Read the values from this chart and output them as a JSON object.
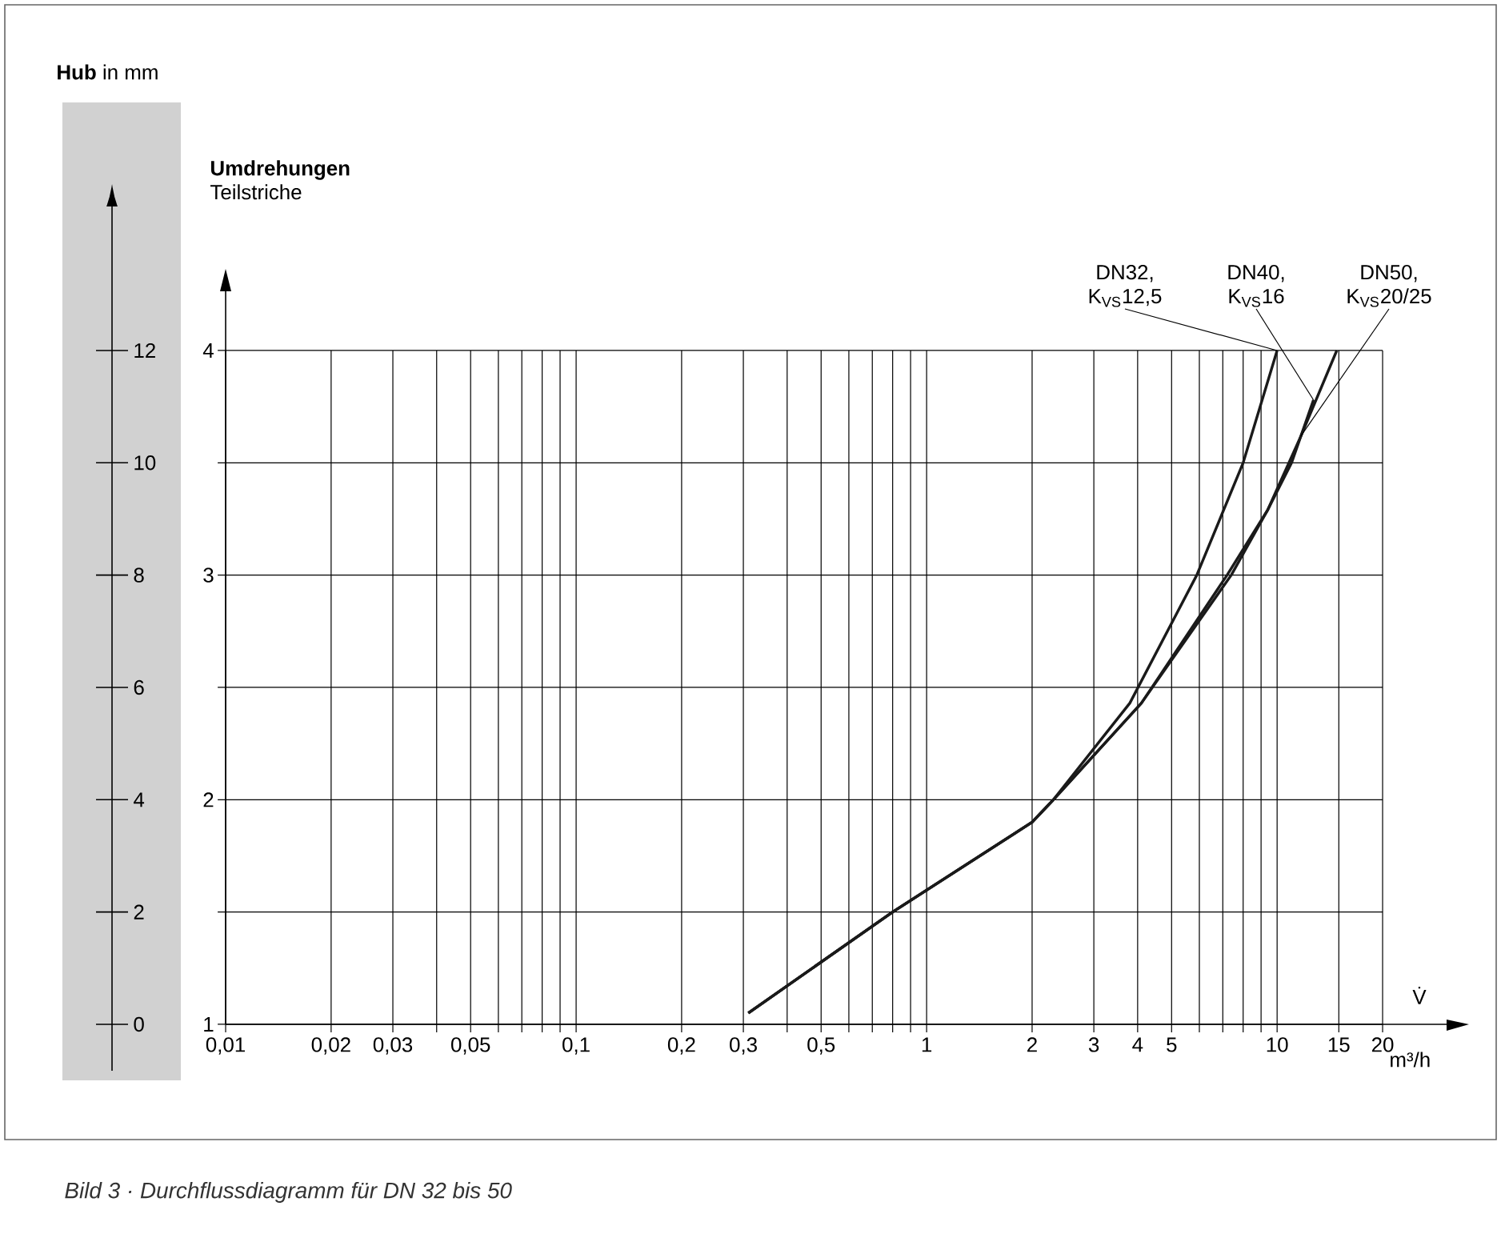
{
  "chart_data": {
    "type": "line",
    "xlabel": "V̇",
    "annotations": [
      "**Hub** in mm",
      "**Umdrehungen** Teilstriche",
      "m³/h",
      "Bild 3 · Durchflussdiagramm für DN 32 bis 50"
    ],
    "log": "x",
    "grid": true,
    "marker": "none",
    "line_style": "solid",
    "xlim": [
      0.01,
      20
    ],
    "xticks": [
      {
        "value": 0.01,
        "label": "0,01"
      },
      {
        "value": 0.02,
        "label": "0,02"
      },
      {
        "value": 0.03,
        "label": "0,03"
      },
      {
        "value": 0.04,
        "label": null
      },
      {
        "value": 0.05,
        "label": "0,05"
      },
      {
        "value": 0.06,
        "label": null
      },
      {
        "value": 0.07,
        "label": null
      },
      {
        "value": 0.08,
        "label": null
      },
      {
        "value": 0.09,
        "label": null
      },
      {
        "value": 0.1,
        "label": "0,1"
      },
      {
        "value": 0.2,
        "label": "0,2"
      },
      {
        "value": 0.3,
        "label": "0,3"
      },
      {
        "value": 0.4,
        "label": null
      },
      {
        "value": 0.5,
        "label": "0,5"
      },
      {
        "value": 0.6,
        "label": null
      },
      {
        "value": 0.7,
        "label": null
      },
      {
        "value": 0.8,
        "label": null
      },
      {
        "value": 0.9,
        "label": null
      },
      1,
      2,
      3,
      4,
      5,
      {
        "value": 6,
        "label": null
      },
      {
        "value": 7,
        "label": null
      },
      {
        "value": 8,
        "label": null
      },
      {
        "value": 9,
        "label": null
      },
      10,
      15,
      20
    ],
    "ylim": [
      1,
      4
    ],
    "yticks": [
      1,
      {
        "value": 1.5,
        "label": null
      },
      2,
      {
        "value": 2.5,
        "label": null
      },
      3,
      {
        "value": 3.5,
        "label": null
      },
      4
    ],
    "y2lim": [
      0,
      12
    ],
    "y2ticks": [
      0,
      2,
      4,
      6,
      8,
      10,
      12
    ],
    "series": [
      {
        "name": "DN32, K$_{VS}$12,5",
        "color": "#1a1a1a",
        "x": [
          0.31,
          0.8,
          2,
          2.3,
          3.8,
          5.9,
          8,
          10
        ],
        "values": [
          1.05,
          1.5,
          1.9,
          2.0,
          2.43,
          3.0,
          3.5,
          4.0
        ]
      },
      {
        "name": "DN40, K$_{VS}$16",
        "color": "#1a1a1a",
        "x": [
          0.31,
          0.8,
          2,
          2.3,
          4.1,
          7.2,
          9.4,
          11,
          12.7
        ],
        "values": [
          1.05,
          1.5,
          1.9,
          2.0,
          2.43,
          3.0,
          3.29,
          3.5,
          3.78
        ]
      },
      {
        "name": "DN50, K$_{VS}$20/25",
        "color": "#1a1a1a",
        "x": [
          0.31,
          0.8,
          2,
          2.3,
          4.1,
          7.4,
          9.4,
          11.7,
          14.8
        ],
        "values": [
          1.05,
          1.5,
          1.9,
          2.0,
          2.43,
          3.0,
          3.29,
          3.62,
          4.0
        ]
      }
    ]
  }
}
